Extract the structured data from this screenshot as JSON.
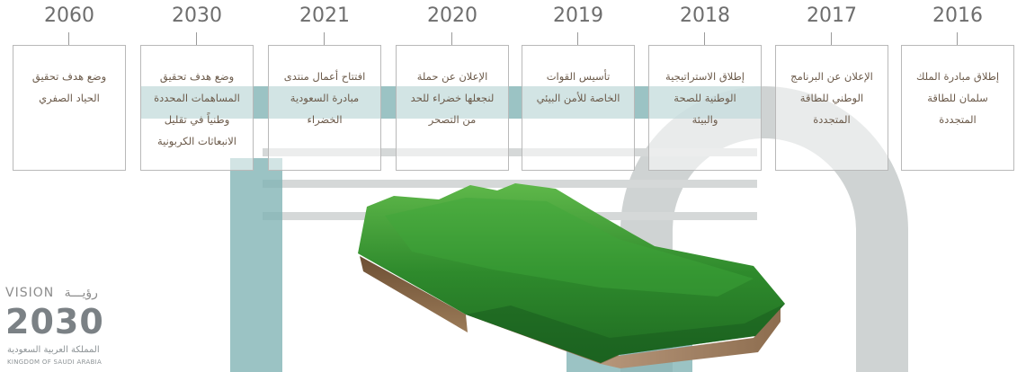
{
  "milestones": [
    {
      "year": "2060",
      "lines": [
        "وضع هدف تحقيق",
        "الحياد الصفري"
      ]
    },
    {
      "year": "2030",
      "lines": [
        "وضع هدف تحقيق",
        "المساهمات المحددة",
        "وطنياً في تقليل",
        "الانبعاثات الكربونية"
      ]
    },
    {
      "year": "2021",
      "lines": [
        "افتتاح أعمال منتدى",
        "مبادرة السعودية",
        "الخضراء"
      ]
    },
    {
      "year": "2020",
      "lines": [
        "الإعلان عن حملة",
        "لنجعلها خضراء للحد",
        "من التصحر"
      ]
    },
    {
      "year": "2019",
      "lines": [
        "تأسيس القوات",
        "الخاصة للأمن البيئي"
      ]
    },
    {
      "year": "2018",
      "lines": [
        "إطلاق الاستراتيجية",
        "الوطنية للصحة",
        "والبيئة"
      ]
    },
    {
      "year": "2017",
      "lines": [
        "الإعلان عن البرنامج",
        "الوطني للطاقة",
        "المتجددة"
      ]
    },
    {
      "year": "2016",
      "lines": [
        "إطلاق مبادرة الملك",
        "سلمان للطاقة",
        "المتجددة"
      ]
    }
  ],
  "logo": {
    "vision_en": "VISION",
    "vision_ar": "رؤيـــة",
    "number": "2030",
    "kingdom_ar": "المملكة العربية السعودية",
    "kingdom_en": "KINGDOM OF SAUDI ARABIA"
  },
  "colors": {
    "year": "#6e6e6e",
    "box_border": "#b9b9b9",
    "grass": "#2f8a2e",
    "soil": "#8a6a4a",
    "watermark": "#7fb2b4"
  }
}
